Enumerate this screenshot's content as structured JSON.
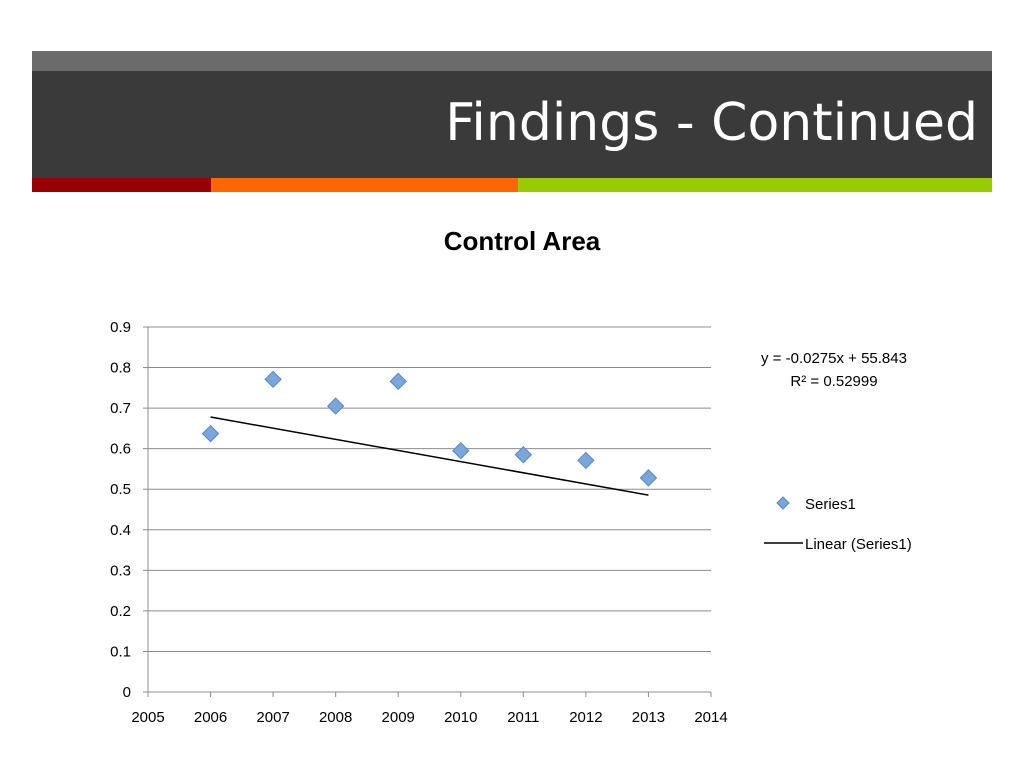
{
  "slide": {
    "title": "Findings - Continued",
    "colors": {
      "header_top": "#6b6b6b",
      "header_bg": "#3a3a3a",
      "stripe_red": "#990000",
      "stripe_orange": "#ff6600",
      "stripe_green": "#99cc00"
    }
  },
  "chart_data": {
    "type": "scatter",
    "title": "Control Area",
    "xlabel": "",
    "ylabel": "",
    "xlim": [
      2005,
      2014
    ],
    "ylim": [
      0,
      0.9
    ],
    "x_ticks": [
      "2005",
      "2006",
      "2007",
      "2008",
      "2009",
      "2010",
      "2011",
      "2012",
      "2013",
      "2014"
    ],
    "y_ticks": [
      "0",
      "0.1",
      "0.2",
      "0.3",
      "0.4",
      "0.5",
      "0.6",
      "0.7",
      "0.8",
      "0.9"
    ],
    "grid": true,
    "legend_position": "right",
    "series": [
      {
        "name": "Series1",
        "marker": "diamond",
        "color": "#7aa6dc",
        "x": [
          2006,
          2007,
          2008,
          2009,
          2010,
          2011,
          2012,
          2013
        ],
        "y": [
          0.637,
          0.771,
          0.705,
          0.766,
          0.595,
          0.585,
          0.571,
          0.528
        ]
      }
    ],
    "trendline": {
      "name": "Linear (Series1)",
      "slope": -0.0275,
      "intercept": 55.843,
      "x_range": [
        2006,
        2013
      ],
      "color": "#000000",
      "equation": "y = -0.0275x + 55.843",
      "r_squared": "R² = 0.52999"
    }
  }
}
